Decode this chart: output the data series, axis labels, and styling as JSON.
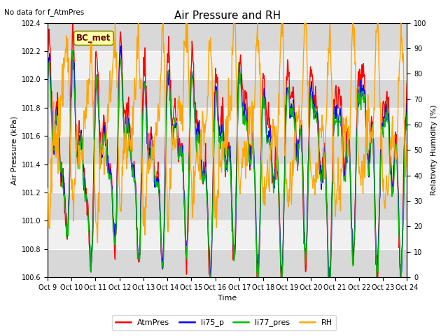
{
  "title": "Air Pressure and RH",
  "top_left_text": "No data for f_AtmPres",
  "annotation_box": "BC_met",
  "xlabel": "Time",
  "ylabel_left": "Air Pressure (kPa)",
  "ylabel_right": "Relativity Humidity (%)",
  "ylim_left": [
    100.6,
    102.4
  ],
  "ylim_right": [
    0,
    100
  ],
  "yticks_left": [
    100.6,
    100.8,
    101.0,
    101.2,
    101.4,
    101.6,
    101.8,
    102.0,
    102.2,
    102.4
  ],
  "yticks_right": [
    0,
    10,
    20,
    30,
    40,
    50,
    60,
    70,
    80,
    90,
    100
  ],
  "xtick_labels": [
    "Oct 9",
    "Oct 10",
    "Oct 11",
    "Oct 12",
    "Oct 13",
    "Oct 14",
    "Oct 15",
    "Oct 16",
    "Oct 17",
    "Oct 18",
    "Oct 19",
    "Oct 20",
    "Oct 21",
    "Oct 22",
    "Oct 23",
    "Oct 24"
  ],
  "colors": {
    "AtmPres": "#ff0000",
    "li75_p": "#0000ff",
    "li77_pres": "#00bb00",
    "RH": "#ffa500"
  },
  "background_color": "#ffffff",
  "plot_bg_light": "#f0f0f0",
  "plot_bg_dark": "#d8d8d8",
  "linewidth": 1.0,
  "title_fontsize": 11,
  "label_fontsize": 8,
  "tick_fontsize": 7,
  "legend_fontsize": 8
}
